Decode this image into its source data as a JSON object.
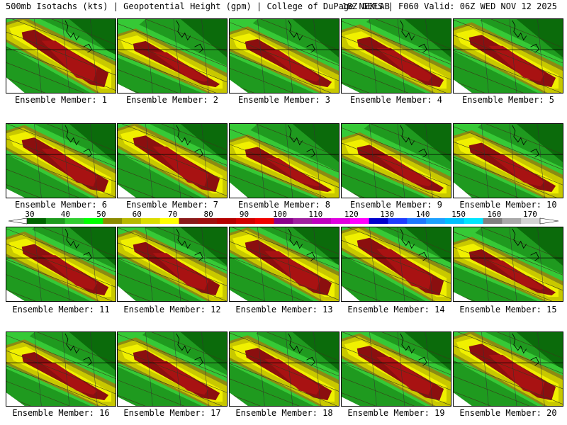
{
  "header": {
    "left": "500mb Isotachs (kts) | Geopotential Height (gpm) | College of DuPage NEXLAB",
    "right": "18Z GEFS | F060 Valid: 06Z WED NOV 12 2025"
  },
  "member_label": "Ensemble Member:",
  "members": [
    {
      "name": "Ensemble Member: 1"
    },
    {
      "name": "Ensemble Member: 2"
    },
    {
      "name": "Ensemble Member: 3"
    },
    {
      "name": "Ensemble Member: 4"
    },
    {
      "name": "Ensemble Member: 5"
    },
    {
      "name": "Ensemble Member: 6"
    },
    {
      "name": "Ensemble Member: 7"
    },
    {
      "name": "Ensemble Member: 8"
    },
    {
      "name": "Ensemble Member: 9"
    },
    {
      "name": "Ensemble Member: 10"
    },
    {
      "name": "Ensemble Member: 11"
    },
    {
      "name": "Ensemble Member: 12"
    },
    {
      "name": "Ensemble Member: 13"
    },
    {
      "name": "Ensemble Member: 14"
    },
    {
      "name": "Ensemble Member: 15"
    },
    {
      "name": "Ensemble Member: 16"
    },
    {
      "name": "Ensemble Member: 17"
    },
    {
      "name": "Ensemble Member: 18"
    },
    {
      "name": "Ensemble Member: 19"
    },
    {
      "name": "Ensemble Member: 20"
    }
  ],
  "colorbar": {
    "labels": [
      "30",
      "40",
      "50",
      "60",
      "70",
      "80",
      "90",
      "100",
      "110",
      "120",
      "130",
      "140",
      "150",
      "160",
      "170"
    ],
    "colors": [
      "#006400",
      "#1e9b1e",
      "#32cd32",
      "#00ff00",
      "#8b8b00",
      "#b8b800",
      "#dcdc00",
      "#ffff00",
      "#8b1a1a",
      "#a01010",
      "#b40000",
      "#d20000",
      "#f00000",
      "#8b008b",
      "#a020a0",
      "#c000c0",
      "#e000e0",
      "#ff00ff",
      "#0000cd",
      "#1e3cff",
      "#1e78ff",
      "#1ea0ff",
      "#00bfff",
      "#00e5ff",
      "#808080",
      "#a9a9a9",
      "#d3d3d3"
    ]
  },
  "palette": {
    "green_dark": "#0b6b0b",
    "green": "#1f9a1f",
    "green_light": "#36c936",
    "olive": "#8b8b12",
    "yellow_dark": "#c8c800",
    "yellow": "#f0f000",
    "maroon": "#8b0f0f",
    "red": "#a81212"
  }
}
